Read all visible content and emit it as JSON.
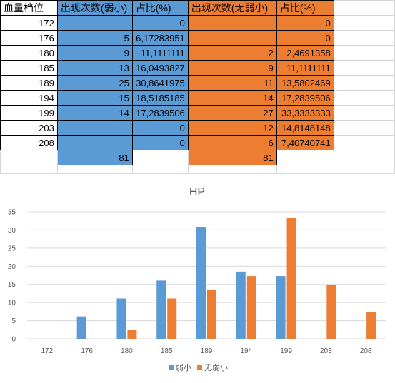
{
  "sheet": {
    "headers": [
      "血量档位",
      "出现次数(弱小)",
      "占比(%)",
      "出现次数(无弱小)",
      "占比(%)"
    ],
    "rows": [
      [
        "172",
        "",
        "0",
        "",
        "0"
      ],
      [
        "176",
        "5",
        "6,17283951",
        "",
        "0"
      ],
      [
        "180",
        "9",
        "11,1111111",
        "2",
        "2,4691358"
      ],
      [
        "185",
        "13",
        "16,0493827",
        "9",
        "11,1111111"
      ],
      [
        "189",
        "25",
        "30,8641975",
        "11",
        "13,5802469"
      ],
      [
        "194",
        "15",
        "18,5185185",
        "14",
        "17,2839506"
      ],
      [
        "199",
        "14",
        "17,2839506",
        "27",
        "33,3333333"
      ],
      [
        "203",
        "",
        "0",
        "12",
        "14,8148148"
      ],
      [
        "208",
        "",
        "0",
        "6",
        "7,40740741"
      ]
    ],
    "totals": [
      "",
      "81",
      "",
      "81",
      ""
    ]
  },
  "colors": {
    "weak": "#5b9bd5",
    "noweak": "#ed7d31",
    "grid": "#d9d9d9"
  },
  "chart_data": {
    "type": "bar",
    "title": "HP",
    "categories": [
      "172",
      "176",
      "180",
      "185",
      "189",
      "194",
      "199",
      "203",
      "208"
    ],
    "series": [
      {
        "name": "弱小",
        "values": [
          0,
          6.17,
          11.11,
          16.05,
          30.86,
          18.52,
          17.28,
          0,
          0
        ]
      },
      {
        "name": "无弱小",
        "values": [
          0,
          0,
          2.47,
          11.11,
          13.58,
          17.28,
          33.33,
          14.81,
          7.41
        ]
      }
    ],
    "ylim": [
      0,
      35
    ],
    "yticks": [
      "0",
      "5",
      "10",
      "15",
      "20",
      "25",
      "30",
      "35"
    ],
    "grid": true,
    "legend": "bottom"
  }
}
